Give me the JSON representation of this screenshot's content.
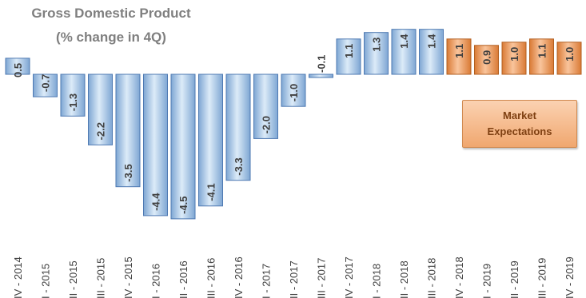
{
  "chart_data": {
    "type": "bar",
    "title": "Gross Domestic Product",
    "subtitle": "(% change in 4Q)",
    "categories": [
      "IV - 2014",
      "I - 2015",
      "II - 2015",
      "III - 2015",
      "IV - 2015",
      "I - 2016",
      "II - 2016",
      "III - 2016",
      "IV - 2016",
      "I - 2017",
      "II - 2017",
      "III - 2017",
      "IV - 2017",
      "I - 2018",
      "II - 2018",
      "III - 2018",
      "IV - 2018",
      "I - 2019",
      "II - 2019",
      "III - 2019",
      "IV - 2019"
    ],
    "values": [
      0.5,
      -0.7,
      -1.3,
      -2.2,
      -3.5,
      -4.4,
      -4.5,
      -4.1,
      -3.3,
      -2.0,
      -1.0,
      -0.1,
      1.1,
      1.3,
      1.4,
      1.4,
      1.1,
      0.9,
      1.0,
      1.1,
      1.0
    ],
    "value_labels": [
      "0.5",
      "-0.7",
      "-1.3",
      "-2.2",
      "-3.5",
      "-4.4",
      "-4.5",
      "-4.1",
      "-3.3",
      "-2.0",
      "-1.0",
      "-0.1",
      "1.1",
      "1.3",
      "1.4",
      "1.4",
      "1.1",
      "0.9",
      "1.0",
      "1.1",
      "1.0"
    ],
    "series_kind": [
      "actual",
      "actual",
      "actual",
      "actual",
      "actual",
      "actual",
      "actual",
      "actual",
      "actual",
      "actual",
      "actual",
      "actual",
      "actual",
      "actual",
      "actual",
      "actual",
      "expectation",
      "expectation",
      "expectation",
      "expectation",
      "expectation"
    ],
    "ylim": [
      -4.5,
      1.5
    ],
    "grid": false,
    "annotation": {
      "line1": "Market",
      "line2": "Expectations"
    },
    "colors": {
      "actual_light": "#dcebf8",
      "actual_dark": "#7ea6d3",
      "actual_border": "#4e79b2",
      "expect_light": "#f9c49c",
      "expect_dark": "#d97a35",
      "expect_border": "#b25f20",
      "title": "#7f7f7f",
      "label": "#3f3f3f"
    }
  }
}
